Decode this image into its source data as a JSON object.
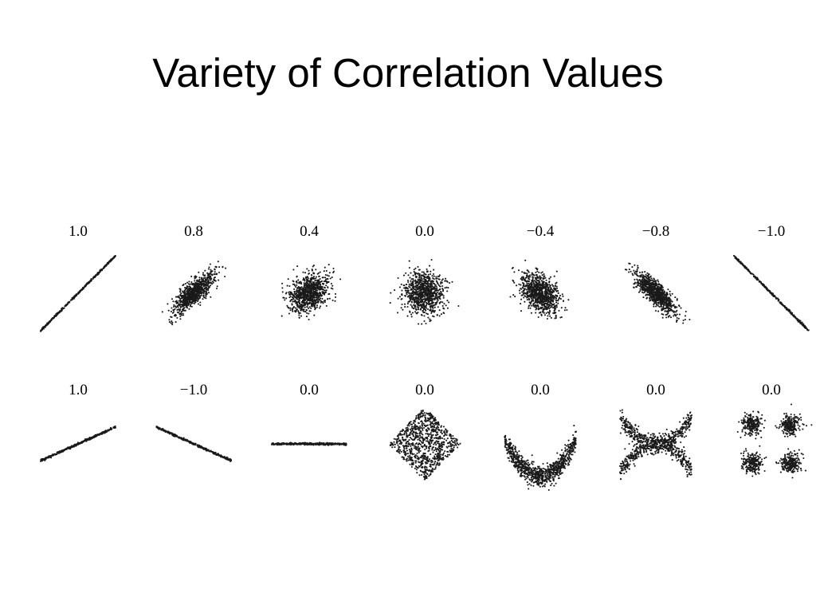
{
  "slide": {
    "title": "Variety of Correlation Values"
  },
  "chart_data": {
    "type": "scatter",
    "point_color": "#1a1a1a",
    "background": "#ffffff",
    "grid": false,
    "axes_visible": false,
    "panels": [
      {
        "label": "1.0",
        "shape": "line",
        "slope": 1.0
      },
      {
        "label": "0.8",
        "shape": "gaussian",
        "correlation": 0.8
      },
      {
        "label": "0.4",
        "shape": "gaussian",
        "correlation": 0.4
      },
      {
        "label": "0.0",
        "shape": "gaussian",
        "correlation": 0.0
      },
      {
        "label": "−0.4",
        "shape": "gaussian",
        "correlation": -0.4
      },
      {
        "label": "−0.8",
        "shape": "gaussian",
        "correlation": -0.8
      },
      {
        "label": "−1.0",
        "shape": "line",
        "slope": -1.0
      },
      {
        "label": "1.0",
        "shape": "line",
        "slope": 0.45
      },
      {
        "label": "−1.0",
        "shape": "line",
        "slope": -0.45
      },
      {
        "label": "0.0",
        "shape": "line",
        "slope": 0.0
      },
      {
        "label": "0.0",
        "shape": "diamond"
      },
      {
        "label": "0.0",
        "shape": "parabola"
      },
      {
        "label": "0.0",
        "shape": "x-shape"
      },
      {
        "label": "0.0",
        "shape": "four-clusters"
      }
    ]
  }
}
